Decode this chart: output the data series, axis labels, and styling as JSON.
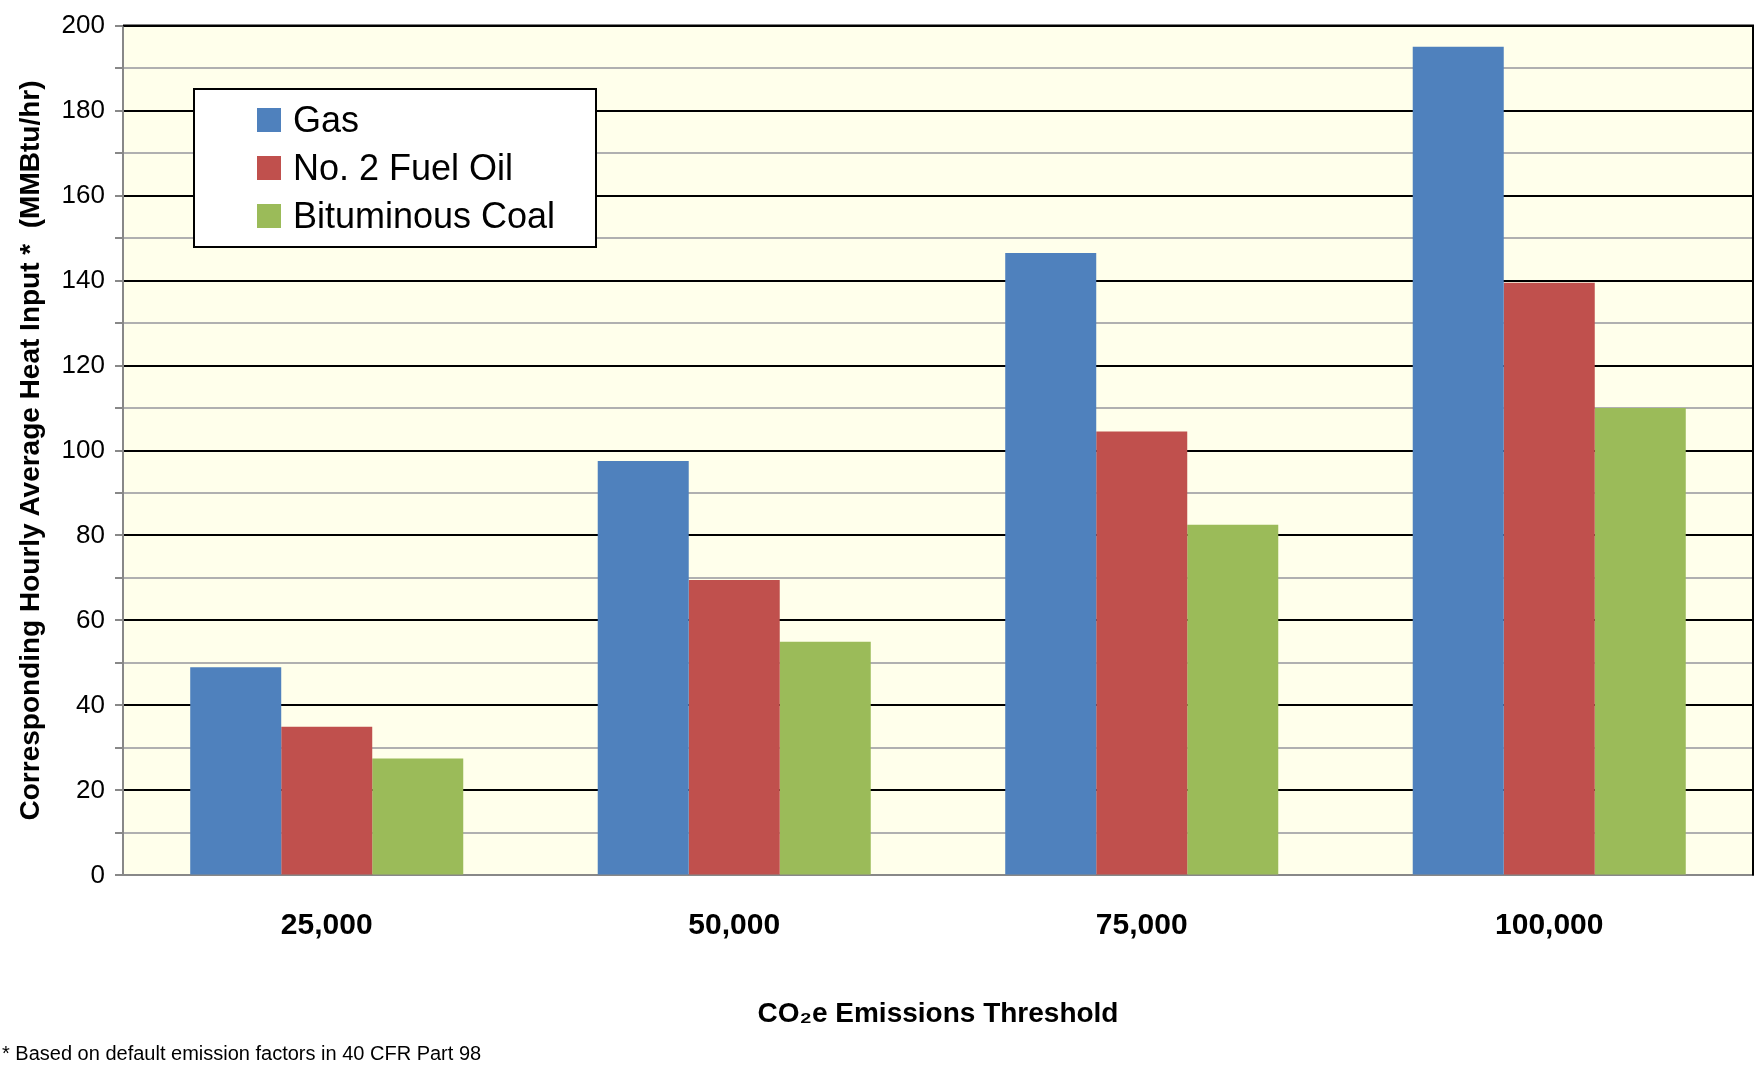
{
  "chart_data": {
    "type": "bar",
    "xlabel": "CO₂e Emissions Threshold",
    "ylabel": "Corresponding Hourly Average Heat Input *  (MMBtu/hr)",
    "categories": [
      "25,000",
      "50,000",
      "75,000",
      "100,000"
    ],
    "series": [
      {
        "name": "Gas",
        "color": "#4f81bd",
        "values": [
          49,
          97.5,
          146.5,
          195
        ]
      },
      {
        "name": "No. 2 Fuel Oil",
        "color": "#c0504d",
        "values": [
          35,
          69.5,
          104.5,
          139.5
        ]
      },
      {
        "name": "Bituminous Coal",
        "color": "#9bbb59",
        "values": [
          27.5,
          55,
          82.5,
          110
        ]
      }
    ],
    "ylim": [
      0,
      200
    ],
    "yticks": [
      0,
      {
        "value": 10,
        "label": null
      },
      20,
      {
        "value": 30,
        "label": null
      },
      40,
      {
        "value": 50,
        "label": null
      },
      60,
      {
        "value": 70,
        "label": null
      },
      80,
      {
        "value": 90,
        "label": null
      },
      100,
      {
        "value": 110,
        "label": null
      },
      120,
      {
        "value": 130,
        "label": null
      },
      140,
      {
        "value": 150,
        "label": null
      },
      160,
      {
        "value": 170,
        "label": null
      },
      180,
      {
        "value": 190,
        "label": null
      },
      200
    ],
    "grid": true,
    "legend": "top left",
    "annotations": [
      "* Based on default emission factors in 40 CFR Part 98"
    ]
  }
}
